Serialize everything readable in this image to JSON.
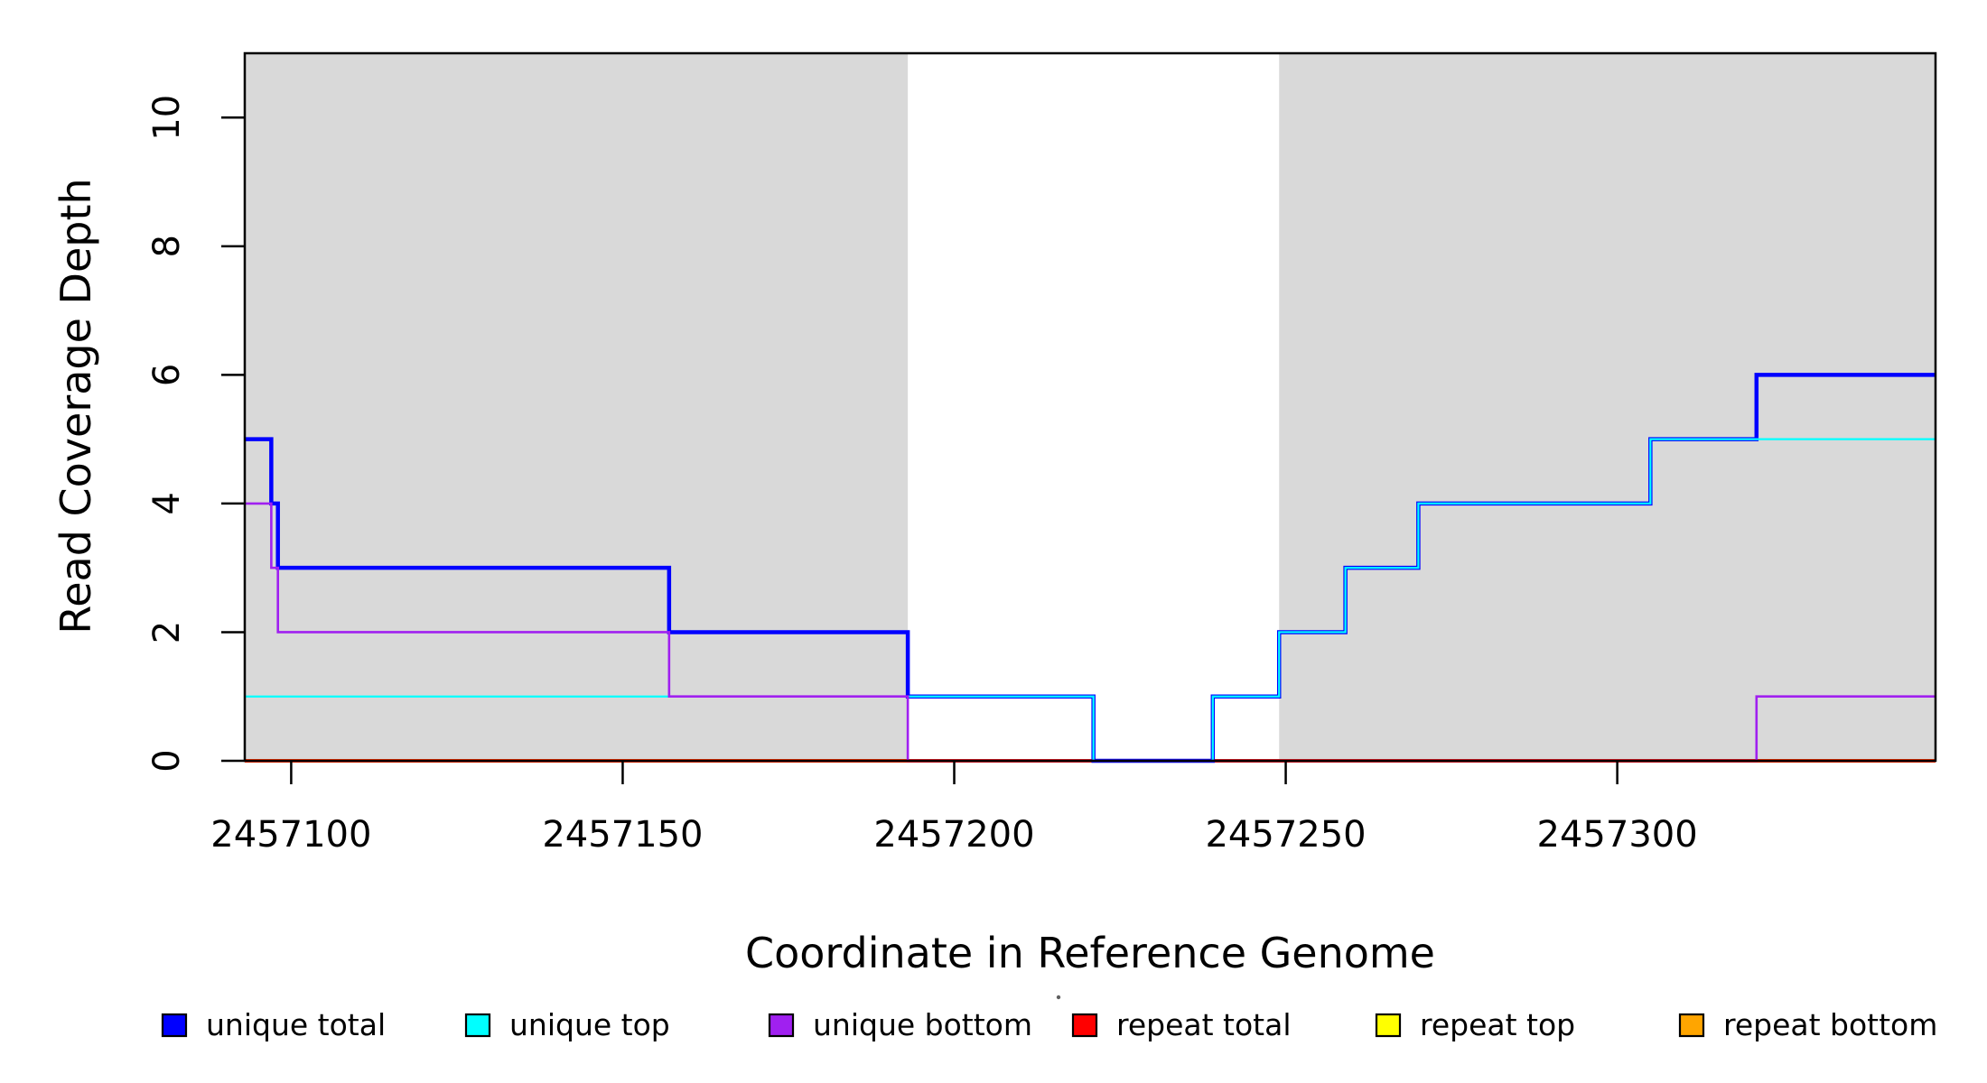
{
  "figure": {
    "y_axis": {
      "label": "Read Coverage Depth",
      "tick_labels": [
        "0",
        "2",
        "4",
        "6",
        "8",
        "10"
      ],
      "tick_values": [
        0,
        2,
        4,
        6,
        8,
        10
      ]
    },
    "x_axis": {
      "label": "Coordinate in Reference Genome",
      "tick_labels": [
        "2457100",
        "2457150",
        "2457200",
        "2457250",
        "2457300"
      ],
      "tick_values": [
        2457100,
        2457150,
        2457200,
        2457250,
        2457300
      ]
    },
    "legend": {
      "items": [
        {
          "label": "unique total",
          "color": "#0000FF"
        },
        {
          "label": "unique top",
          "color": "#00FFFF"
        },
        {
          "label": "unique bottom",
          "color": "#A020F0"
        },
        {
          "label": "repeat total",
          "color": "#FF0000"
        },
        {
          "label": "repeat top",
          "color": "#FFFF00"
        },
        {
          "label": "repeat bottom",
          "color": "#FFA500"
        }
      ]
    }
  },
  "chart_data": {
    "type": "line",
    "subtype": "step-after",
    "title": "",
    "xlabel": "Coordinate in Reference Genome",
    "ylabel": "Read Coverage Depth",
    "xlim": [
      2457093,
      2457348
    ],
    "ylim": [
      0,
      11
    ],
    "grid": false,
    "legend_position": "bottom",
    "shaded_regions": [
      {
        "x0": 2457093,
        "x1": 2457193,
        "color": "#D9D9D9"
      },
      {
        "x0": 2457249,
        "x1": 2457348,
        "color": "#D9D9D9"
      }
    ],
    "series": [
      {
        "name": "repeat total",
        "color": "#FF0000",
        "width": 4,
        "points": [
          [
            2457093,
            0
          ]
        ]
      },
      {
        "name": "repeat top",
        "color": "#FFFF00",
        "width": 2.5,
        "points": [
          [
            2457093,
            0
          ]
        ]
      },
      {
        "name": "repeat bottom",
        "color": "#FFA500",
        "width": 2.5,
        "points": [
          [
            2457093,
            0
          ]
        ]
      },
      {
        "name": "unique total",
        "color": "#0000FF",
        "width": 4.5,
        "points": [
          [
            2457093,
            5
          ],
          [
            2457097,
            4
          ],
          [
            2457098,
            3
          ],
          [
            2457157,
            2
          ],
          [
            2457193,
            1
          ],
          [
            2457221,
            0
          ],
          [
            2457239,
            1
          ],
          [
            2457249,
            2
          ],
          [
            2457259,
            3
          ],
          [
            2457270,
            4
          ],
          [
            2457305,
            5
          ],
          [
            2457321,
            6
          ]
        ]
      },
      {
        "name": "unique top",
        "color": "#00FFFF",
        "width": 2.2,
        "points": [
          [
            2457093,
            1
          ],
          [
            2457221,
            0
          ],
          [
            2457239,
            1
          ],
          [
            2457249,
            2
          ],
          [
            2457259,
            3
          ],
          [
            2457270,
            4
          ],
          [
            2457305,
            5
          ]
        ]
      },
      {
        "name": "unique bottom",
        "color": "#A020F0",
        "width": 2.6,
        "points": [
          [
            2457093,
            4
          ],
          [
            2457097,
            3
          ],
          [
            2457098,
            2
          ],
          [
            2457157,
            1
          ],
          [
            2457193,
            0
          ],
          [
            2457321,
            1
          ]
        ]
      }
    ]
  }
}
